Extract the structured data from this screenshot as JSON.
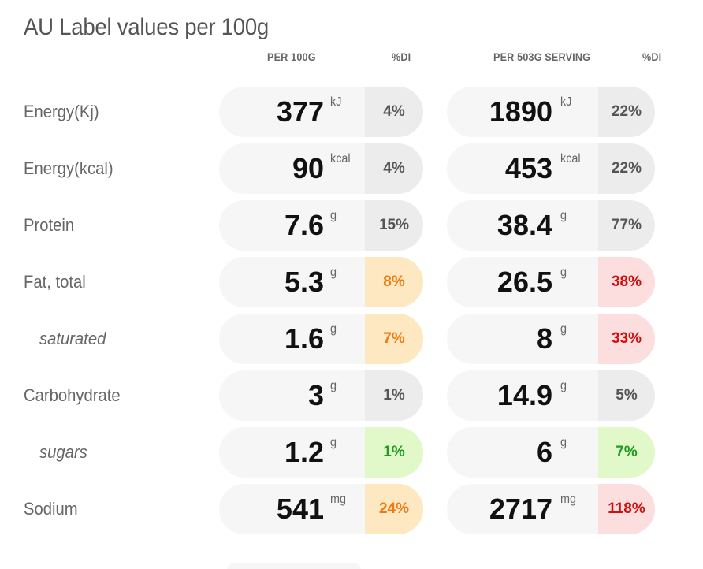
{
  "title": "AU Label values per 100g",
  "headers": {
    "per100": "PER 100G",
    "di1": "%DI",
    "serving": "PER 503G SERVING",
    "di2": "%DI"
  },
  "status_colors": {
    "grey": "#ececec",
    "orange": "#fde8c2",
    "red": "#fddede",
    "green": "#e1f8c9"
  },
  "rows": [
    {
      "label": "Energy(Kj)",
      "sub": false,
      "v100": "377",
      "u100": "kJ",
      "di100": "4%",
      "c100": "grey",
      "vserv": "1890",
      "userv": "kJ",
      "diserv": "22%",
      "cserv": "grey"
    },
    {
      "label": "Energy(kcal)",
      "sub": false,
      "v100": "90",
      "u100": "kcal",
      "di100": "4%",
      "c100": "grey",
      "vserv": "453",
      "userv": "kcal",
      "diserv": "22%",
      "cserv": "grey"
    },
    {
      "label": "Protein",
      "sub": false,
      "v100": "7.6",
      "u100": "g",
      "di100": "15%",
      "c100": "grey",
      "vserv": "38.4",
      "userv": "g",
      "diserv": "77%",
      "cserv": "grey"
    },
    {
      "label": "Fat, total",
      "sub": false,
      "v100": "5.3",
      "u100": "g",
      "di100": "8%",
      "c100": "orange",
      "vserv": "26.5",
      "userv": "g",
      "diserv": "38%",
      "cserv": "red"
    },
    {
      "label": "saturated",
      "sub": true,
      "v100": "1.6",
      "u100": "g",
      "di100": "7%",
      "c100": "orange",
      "vserv": "8",
      "userv": "g",
      "diserv": "33%",
      "cserv": "red"
    },
    {
      "label": "Carbohydrate",
      "sub": false,
      "v100": "3",
      "u100": "g",
      "di100": "1%",
      "c100": "grey",
      "vserv": "14.9",
      "userv": "g",
      "diserv": "5%",
      "cserv": "grey"
    },
    {
      "label": "sugars",
      "sub": true,
      "v100": "1.2",
      "u100": "g",
      "di100": "1%",
      "c100": "green",
      "vserv": "6",
      "userv": "g",
      "diserv": "7%",
      "cserv": "green"
    },
    {
      "label": "Sodium",
      "sub": false,
      "v100": "541",
      "u100": "mg",
      "di100": "24%",
      "c100": "orange",
      "vserv": "2717",
      "userv": "mg",
      "diserv": "118%",
      "cserv": "red"
    }
  ]
}
